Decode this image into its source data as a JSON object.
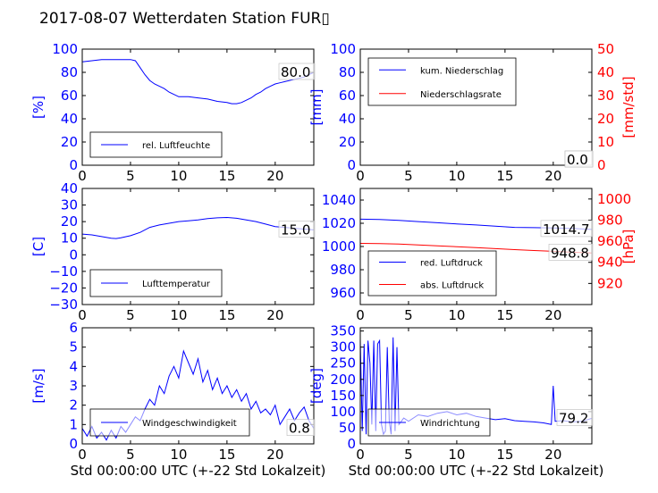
{
  "title": "2017-08-07 Wetterdaten Station FUR",
  "title_glyph": "▯",
  "colors": {
    "left_axis": "#0000ff",
    "right_axis": "#ff0000",
    "series_primary": "#0000ff",
    "series_secondary": "#ff0000"
  },
  "chart_data": [
    {
      "type": "line",
      "xlabel": "",
      "ylabel": "[%]",
      "xlim": [
        0,
        24
      ],
      "ylim": [
        0,
        100
      ],
      "xticks": [
        "0",
        "5",
        "10",
        "15",
        "20"
      ],
      "yticks": [
        "0",
        "20",
        "40",
        "60",
        "80",
        "100"
      ],
      "legend": "lower-left",
      "last_value": "80.0",
      "series": [
        {
          "name": "rel. Luftfeuchte",
          "color": "#0000ff",
          "axis": "left",
          "x": [
            0,
            1,
            2,
            3,
            4,
            5,
            5.5,
            6,
            6.5,
            7,
            7.5,
            8,
            8.5,
            9,
            9.5,
            10,
            11,
            12,
            13,
            14,
            15,
            15.5,
            16,
            16.5,
            17,
            17.5,
            18,
            18.5,
            19,
            19.5,
            20,
            20.5,
            21,
            22,
            23,
            24
          ],
          "y": [
            89,
            90,
            91,
            91,
            91,
            91,
            90,
            84,
            78,
            73,
            70,
            68,
            66,
            63,
            61,
            59,
            59,
            58,
            57,
            55,
            54,
            53,
            53,
            54,
            56,
            58,
            61,
            63,
            66,
            68,
            70,
            71,
            72,
            74,
            76,
            80
          ]
        }
      ]
    },
    {
      "type": "line",
      "xlabel": "",
      "ylabel": "[mm]",
      "ylabel_right": "[mm/std]",
      "xlim": [
        0,
        24
      ],
      "ylim": [
        0,
        100
      ],
      "ylim_right": [
        0,
        50
      ],
      "xticks": [
        "0",
        "5",
        "10",
        "15",
        "20"
      ],
      "yticks": [
        "0",
        "20",
        "40",
        "60",
        "80",
        "100"
      ],
      "yticks_right": [
        "0",
        "10",
        "20",
        "30",
        "40",
        "50"
      ],
      "legend": "top-left",
      "last_value": "0.0",
      "last_value_right": "0.0",
      "series": [
        {
          "name": "kum. Niederschlag",
          "color": "#0000ff",
          "axis": "left",
          "x": [
            0,
            24
          ],
          "y": [
            0,
            0
          ]
        },
        {
          "name": "Niederschlagsrate",
          "color": "#ff0000",
          "axis": "right",
          "x": [
            0,
            24
          ],
          "y": [
            0,
            0
          ]
        }
      ]
    },
    {
      "type": "line",
      "xlabel": "",
      "ylabel": "[C]",
      "xlim": [
        0,
        24
      ],
      "ylim": [
        -30,
        40
      ],
      "xticks": [
        "0",
        "5",
        "10",
        "15",
        "20"
      ],
      "yticks": [
        "−30",
        "−20",
        "−10",
        "0",
        "10",
        "20",
        "30",
        "40"
      ],
      "legend": "lower-left",
      "last_value": "15.0",
      "series": [
        {
          "name": "Lufttemperatur",
          "color": "#0000ff",
          "axis": "left",
          "x": [
            0,
            1,
            2,
            3,
            3.5,
            4,
            5,
            6,
            7,
            8,
            9,
            10,
            11,
            12,
            13,
            14,
            15,
            16,
            17,
            18,
            19,
            20,
            21,
            22,
            23,
            24
          ],
          "y": [
            12.5,
            12.0,
            11.0,
            10.0,
            9.8,
            10.2,
            11.5,
            13.5,
            16.5,
            18.0,
            19.0,
            20.0,
            20.5,
            21.0,
            21.8,
            22.3,
            22.5,
            22.0,
            21.0,
            20.0,
            18.5,
            17.0,
            16.5,
            16.0,
            15.5,
            15.0
          ]
        }
      ]
    },
    {
      "type": "line",
      "xlabel": "",
      "ylabel": "",
      "ylabel_right": "[hPa]",
      "xlim": [
        0,
        24
      ],
      "ylim": [
        950,
        1050
      ],
      "ylim_right": [
        900,
        1010
      ],
      "xticks": [
        "0",
        "5",
        "10",
        "15",
        "20"
      ],
      "yticks": [
        "960",
        "980",
        "1000",
        "1020",
        "1040"
      ],
      "yticks_right": [
        "920",
        "940",
        "960",
        "980",
        "1000"
      ],
      "legend": "lower-left",
      "last_value": "1014.7",
      "last_value_right": "948.8",
      "series": [
        {
          "name": "red. Luftdruck",
          "color": "#0000ff",
          "axis": "left",
          "x": [
            0,
            2,
            4,
            6,
            8,
            10,
            12,
            14,
            16,
            18,
            20,
            22,
            24
          ],
          "y": [
            1023.5,
            1023.2,
            1022.5,
            1021.5,
            1020.5,
            1019.5,
            1018.5,
            1017.5,
            1016.5,
            1016.2,
            1016.0,
            1015.5,
            1014.7
          ]
        },
        {
          "name": "abs. Luftdruck",
          "color": "#ff0000",
          "axis": "right",
          "x": [
            0,
            2,
            4,
            6,
            8,
            10,
            12,
            14,
            16,
            18,
            20,
            22,
            24
          ],
          "y": [
            958.0,
            957.8,
            957.3,
            956.5,
            955.7,
            954.8,
            953.9,
            953.0,
            952.0,
            951.2,
            950.4,
            949.6,
            948.8
          ]
        }
      ]
    },
    {
      "type": "line",
      "xlabel": "Std 00:00:00 UTC (+-22 Std Lokalzeit)",
      "ylabel": "[m/s]",
      "xlim": [
        0,
        24
      ],
      "ylim": [
        0,
        6
      ],
      "xticks": [
        "0",
        "5",
        "10",
        "15",
        "20"
      ],
      "yticks": [
        "0",
        "1",
        "2",
        "3",
        "4",
        "5",
        "6"
      ],
      "legend": "lower-left",
      "last_value": "0.8",
      "series": [
        {
          "name": "Windgeschwindigkeit",
          "color": "#0000ff",
          "axis": "left",
          "x": [
            0,
            0.5,
            1,
            1.5,
            2,
            2.5,
            3,
            3.5,
            4,
            4.5,
            5,
            5.5,
            6,
            6.5,
            7,
            7.5,
            8,
            8.5,
            9,
            9.5,
            10,
            10.5,
            11,
            11.5,
            12,
            12.5,
            13,
            13.5,
            14,
            14.5,
            15,
            15.5,
            16,
            16.5,
            17,
            17.5,
            18,
            18.5,
            19,
            19.5,
            20,
            20.5,
            21,
            21.5,
            22,
            22.5,
            23,
            23.5,
            24
          ],
          "y": [
            0.8,
            0.4,
            0.9,
            0.3,
            0.6,
            0.2,
            0.7,
            0.3,
            0.9,
            0.6,
            1.0,
            1.4,
            1.2,
            1.8,
            2.3,
            2.0,
            3.0,
            2.6,
            3.5,
            4.0,
            3.4,
            4.8,
            4.2,
            3.6,
            4.4,
            3.2,
            3.8,
            2.8,
            3.4,
            2.6,
            3.0,
            2.4,
            2.8,
            2.2,
            2.6,
            1.8,
            2.2,
            1.6,
            1.8,
            1.5,
            2.0,
            1.0,
            1.4,
            1.8,
            1.2,
            1.6,
            1.9,
            1.2,
            0.8
          ]
        }
      ]
    },
    {
      "type": "line",
      "xlabel": "Std 00:00:00 UTC (+-22 Std Lokalzeit)",
      "ylabel": "[deg]",
      "xlim": [
        0,
        24
      ],
      "ylim": [
        0,
        360
      ],
      "xticks": [
        "0",
        "5",
        "10",
        "15",
        "20"
      ],
      "yticks": [
        "0",
        "50",
        "100",
        "150",
        "200",
        "250",
        "300",
        "350"
      ],
      "legend": "lower-center",
      "last_value": "79.2",
      "series": [
        {
          "name": "Windrichtung",
          "color": "#0000ff",
          "axis": "left",
          "x": [
            0,
            0.2,
            0.4,
            0.6,
            0.8,
            1.0,
            1.2,
            1.4,
            1.6,
            1.8,
            2.0,
            2.2,
            2.4,
            2.6,
            2.8,
            3.0,
            3.2,
            3.4,
            3.6,
            3.8,
            4.0,
            4.5,
            5,
            6,
            7,
            8,
            9,
            10,
            11,
            12,
            13,
            14,
            15,
            16,
            17,
            18,
            19,
            19.8,
            20.0,
            20.2,
            21,
            22,
            23,
            24
          ],
          "y": [
            320,
            40,
            310,
            30,
            320,
            250,
            60,
            320,
            40,
            310,
            320,
            60,
            30,
            40,
            300,
            70,
            30,
            330,
            40,
            300,
            60,
            80,
            70,
            90,
            85,
            95,
            100,
            90,
            95,
            85,
            80,
            75,
            78,
            72,
            70,
            68,
            65,
            60,
            180,
            70,
            72,
            68,
            70,
            79.2
          ]
        }
      ]
    }
  ]
}
